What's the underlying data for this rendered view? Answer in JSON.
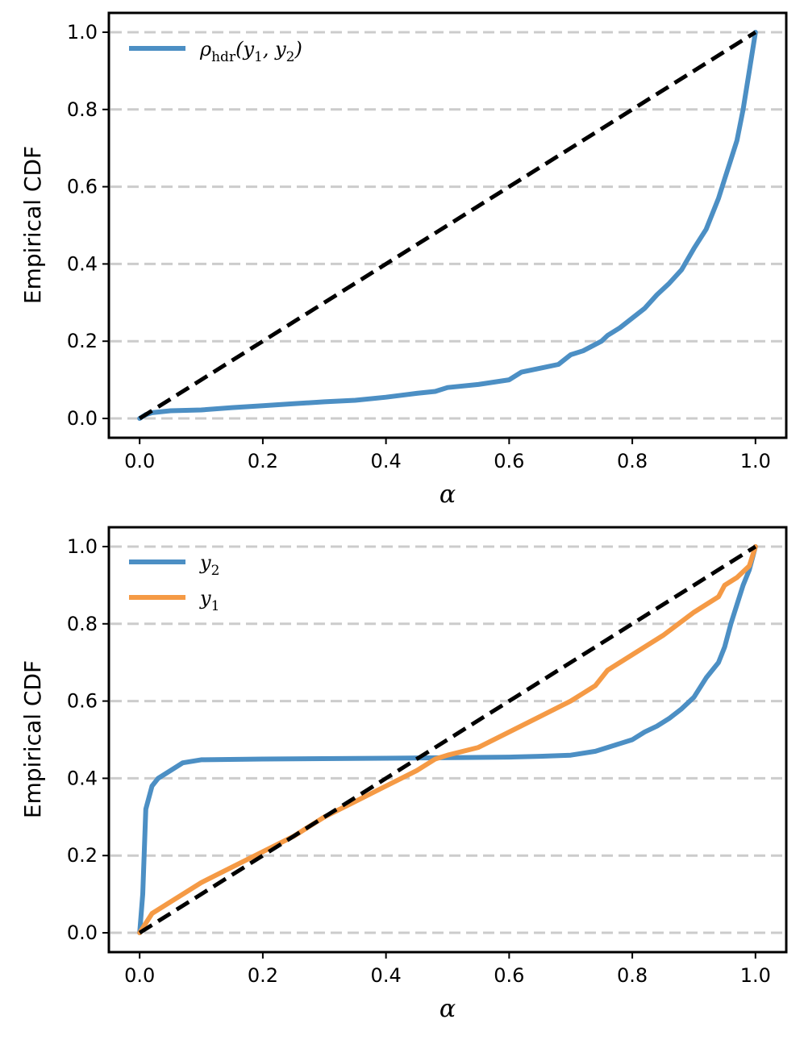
{
  "chart_data": [
    {
      "type": "line",
      "xlabel": "α",
      "ylabel": "Empirical CDF",
      "xlim": [
        -0.05,
        1.05
      ],
      "ylim": [
        -0.05,
        1.05
      ],
      "xticks": [
        0.0,
        0.2,
        0.4,
        0.6,
        0.8,
        1.0
      ],
      "yticks": [
        0.0,
        0.2,
        0.4,
        0.6,
        0.8,
        1.0
      ],
      "xtick_labels": [
        "0.0",
        "0.2",
        "0.4",
        "0.6",
        "0.8",
        "1.0"
      ],
      "ytick_labels": [
        "0.0",
        "0.2",
        "0.4",
        "0.6",
        "0.8",
        "1.0"
      ],
      "grid": "horizontal-dashed",
      "legend_position": "top-left",
      "series": [
        {
          "name": "ρhdr(y1, y2)",
          "legend": {
            "main": "ρ",
            "sub1": "hdr",
            "open": "(y",
            "sub2": "1",
            "mid": ", y",
            "sub3": "2",
            "close": ")"
          },
          "color": "#4c8fc4",
          "x": [
            0.0,
            0.01,
            0.02,
            0.05,
            0.1,
            0.15,
            0.2,
            0.25,
            0.3,
            0.35,
            0.4,
            0.45,
            0.48,
            0.5,
            0.55,
            0.6,
            0.62,
            0.65,
            0.68,
            0.7,
            0.72,
            0.75,
            0.76,
            0.78,
            0.8,
            0.82,
            0.84,
            0.86,
            0.88,
            0.9,
            0.92,
            0.94,
            0.95,
            0.96,
            0.97,
            0.98,
            0.99,
            1.0
          ],
          "y": [
            0.0,
            0.01,
            0.015,
            0.02,
            0.022,
            0.028,
            0.033,
            0.038,
            0.043,
            0.047,
            0.055,
            0.065,
            0.07,
            0.08,
            0.088,
            0.1,
            0.12,
            0.13,
            0.14,
            0.165,
            0.175,
            0.2,
            0.215,
            0.235,
            0.26,
            0.285,
            0.32,
            0.35,
            0.385,
            0.44,
            0.49,
            0.57,
            0.62,
            0.67,
            0.72,
            0.8,
            0.9,
            1.0
          ]
        },
        {
          "name": "diagonal",
          "color": "#000000",
          "dashed": true,
          "x": [
            0.0,
            1.0
          ],
          "y": [
            0.0,
            1.0
          ]
        }
      ]
    },
    {
      "type": "line",
      "xlabel": "α",
      "ylabel": "Empirical CDF",
      "xlim": [
        -0.05,
        1.05
      ],
      "ylim": [
        -0.05,
        1.05
      ],
      "xticks": [
        0.0,
        0.2,
        0.4,
        0.6,
        0.8,
        1.0
      ],
      "yticks": [
        0.0,
        0.2,
        0.4,
        0.6,
        0.8,
        1.0
      ],
      "xtick_labels": [
        "0.0",
        "0.2",
        "0.4",
        "0.6",
        "0.8",
        "1.0"
      ],
      "ytick_labels": [
        "0.0",
        "0.2",
        "0.4",
        "0.6",
        "0.8",
        "1.0"
      ],
      "grid": "horizontal-dashed",
      "legend_position": "top-left",
      "series": [
        {
          "name": "y2",
          "legend": {
            "main": "y",
            "sub1": "2"
          },
          "color": "#4c8fc4",
          "x": [
            0.0,
            0.005,
            0.01,
            0.02,
            0.03,
            0.05,
            0.07,
            0.1,
            0.2,
            0.4,
            0.6,
            0.65,
            0.7,
            0.74,
            0.76,
            0.78,
            0.8,
            0.82,
            0.84,
            0.86,
            0.88,
            0.9,
            0.92,
            0.94,
            0.95,
            0.96,
            0.97,
            0.98,
            0.99,
            1.0
          ],
          "y": [
            0.0,
            0.1,
            0.32,
            0.38,
            0.4,
            0.42,
            0.44,
            0.448,
            0.45,
            0.452,
            0.455,
            0.457,
            0.46,
            0.47,
            0.48,
            0.49,
            0.5,
            0.52,
            0.535,
            0.555,
            0.58,
            0.61,
            0.66,
            0.7,
            0.74,
            0.8,
            0.85,
            0.9,
            0.94,
            1.0
          ]
        },
        {
          "name": "y1",
          "legend": {
            "main": "y",
            "sub1": "1"
          },
          "color": "#f59a45",
          "x": [
            0.0,
            0.02,
            0.05,
            0.1,
            0.15,
            0.2,
            0.25,
            0.3,
            0.35,
            0.4,
            0.45,
            0.48,
            0.5,
            0.55,
            0.6,
            0.65,
            0.7,
            0.72,
            0.74,
            0.76,
            0.8,
            0.85,
            0.9,
            0.94,
            0.95,
            0.97,
            0.99,
            1.0
          ],
          "y": [
            0.0,
            0.05,
            0.08,
            0.13,
            0.17,
            0.21,
            0.25,
            0.3,
            0.34,
            0.38,
            0.42,
            0.45,
            0.46,
            0.48,
            0.52,
            0.56,
            0.6,
            0.62,
            0.64,
            0.68,
            0.72,
            0.77,
            0.83,
            0.87,
            0.9,
            0.92,
            0.95,
            1.0
          ]
        },
        {
          "name": "diagonal",
          "color": "#000000",
          "dashed": true,
          "x": [
            0.0,
            1.0
          ],
          "y": [
            0.0,
            1.0
          ]
        }
      ]
    }
  ]
}
